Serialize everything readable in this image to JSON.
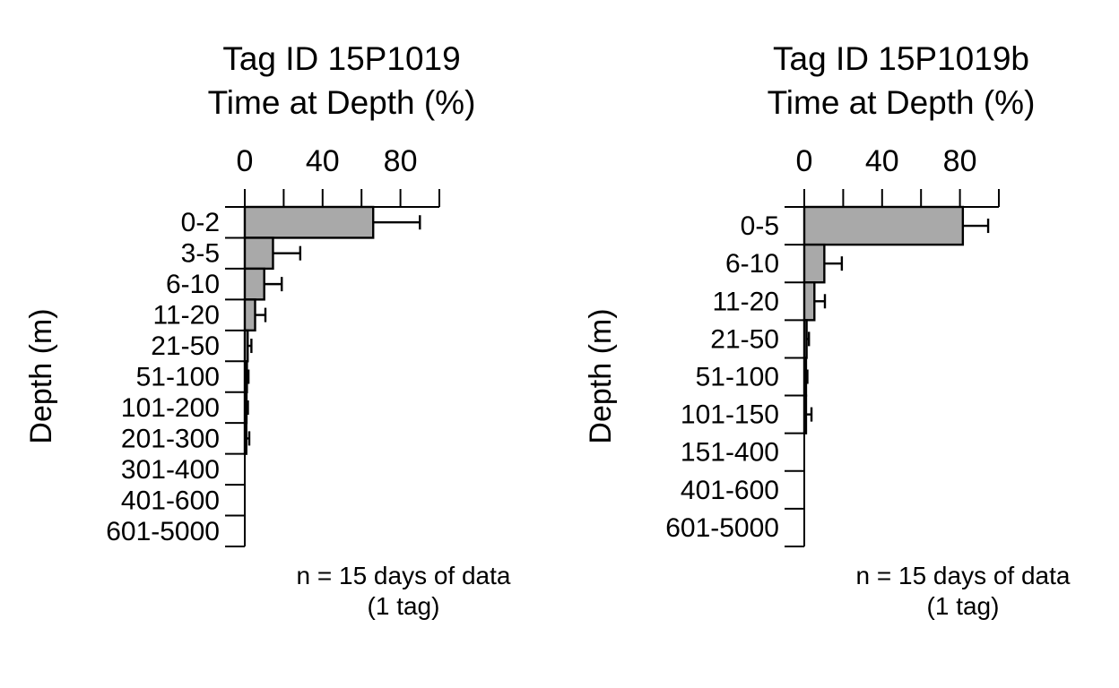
{
  "figure": {
    "background_color": "#ffffff",
    "text_color": "#000000"
  },
  "chart_data": [
    {
      "type": "bar",
      "orientation": "horizontal",
      "title": "Tag ID 15P1019",
      "subtitle": "Time at Depth (%)",
      "xlabel": "Time at Depth (%)",
      "ylabel": "Depth (m)",
      "note": "n = 15 days of data",
      "note2": "(1 tag)",
      "categories": [
        "0-2",
        "3-5",
        "6-10",
        "11-20",
        "21-50",
        "51-100",
        "101-200",
        "201-300",
        "301-400",
        "401-600",
        "601-5000"
      ],
      "values": [
        66,
        14.5,
        10,
        5.3,
        1.5,
        1.1,
        0.9,
        0.8,
        0,
        0,
        0
      ],
      "error_upper": [
        90,
        28.5,
        19,
        10.6,
        3.4,
        1.9,
        1.6,
        2.3,
        null,
        null,
        null
      ],
      "xlim": [
        0,
        100
      ],
      "xticks_labeled": [
        0,
        40,
        80
      ],
      "xtick_minor_step": 20,
      "grid": false,
      "bar_color": "#a9a9a9",
      "bar_border_color": "#000000",
      "axis_color": "#000000"
    },
    {
      "type": "bar",
      "orientation": "horizontal",
      "title": "Tag ID 15P1019b",
      "subtitle": "Time at Depth (%)",
      "xlabel": "Time at Depth (%)",
      "ylabel": "Depth (m)",
      "note": "n = 15 days of data",
      "note2": "(1 tag)",
      "categories": [
        "0-5",
        "6-10",
        "11-20",
        "21-50",
        "51-100",
        "101-150",
        "151-400",
        "401-600",
        "601-5000"
      ],
      "values": [
        81.5,
        10.3,
        5.2,
        1.2,
        0.9,
        0.9,
        0,
        0,
        0
      ],
      "error_upper": [
        94.5,
        19.3,
        10.6,
        2.4,
        1.6,
        3.7,
        null,
        null,
        null
      ],
      "xlim": [
        0,
        100
      ],
      "xticks_labeled": [
        0,
        40,
        80
      ],
      "xtick_minor_step": 20,
      "grid": false,
      "bar_color": "#a9a9a9",
      "bar_border_color": "#000000",
      "axis_color": "#000000"
    }
  ]
}
